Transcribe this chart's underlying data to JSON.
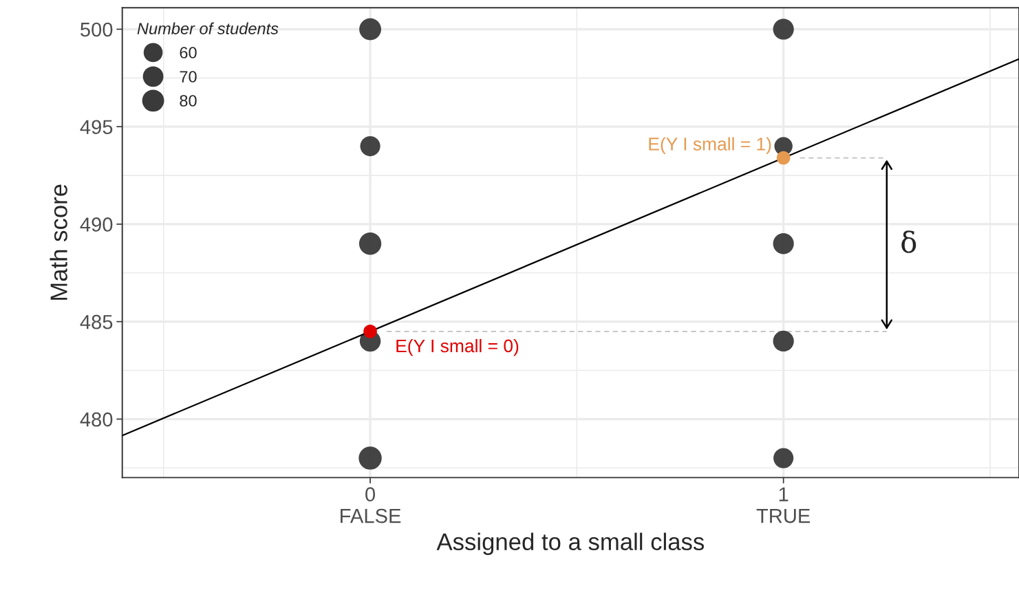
{
  "chart_data": {
    "type": "scatter",
    "xlabel": "Assigned to a small class",
    "ylabel": "Math score",
    "xlim": [
      -0.6,
      1.57
    ],
    "ylim": [
      477.0,
      501.1
    ],
    "xticks": [
      {
        "value": 0,
        "label": "0\nFALSE"
      },
      {
        "value": 1,
        "label": "1\nTRUE"
      }
    ],
    "yticks": [
      480,
      485,
      490,
      495,
      500
    ],
    "grid": true,
    "legend_title": "Number of students",
    "size_legend": [
      60,
      70,
      80
    ],
    "series": [
      {
        "type": "scatter",
        "color": "#3a3a3a",
        "x": [
          0,
          0,
          0,
          0,
          0,
          1,
          1,
          1,
          1,
          1
        ],
        "values": [
          500,
          494,
          489,
          484,
          478,
          500,
          494,
          489,
          484,
          478
        ],
        "sizes": [
          80,
          67,
          82,
          73,
          88,
          72,
          55,
          72,
          72,
          67
        ]
      },
      {
        "type": "line",
        "color": "#000000",
        "x": [
          -0.6,
          1.57
        ],
        "values": [
          479.16,
          498.47
        ]
      },
      {
        "type": "line",
        "color": "#bfbfbf",
        "line_style": "dashed",
        "x": [
          0.04,
          1.25
        ],
        "values": [
          484.5,
          484.5
        ]
      },
      {
        "type": "line",
        "color": "#bfbfbf",
        "line_style": "dashed",
        "x": [
          1.04,
          1.25
        ],
        "values": [
          493.4,
          493.4
        ]
      },
      {
        "type": "scatter",
        "color": "#e00000",
        "x": [
          0
        ],
        "values": [
          484.5
        ]
      },
      {
        "type": "scatter",
        "color": "#e69a50",
        "x": [
          1
        ],
        "values": [
          493.4
        ]
      }
    ],
    "annotations": [
      "δ",
      {
        "text": "E(Y I small = 0)",
        "x": 0,
        "y": 484.5
      },
      {
        "text": "E(Y I small = 1)",
        "x": 1,
        "y": 493.4
      }
    ]
  }
}
